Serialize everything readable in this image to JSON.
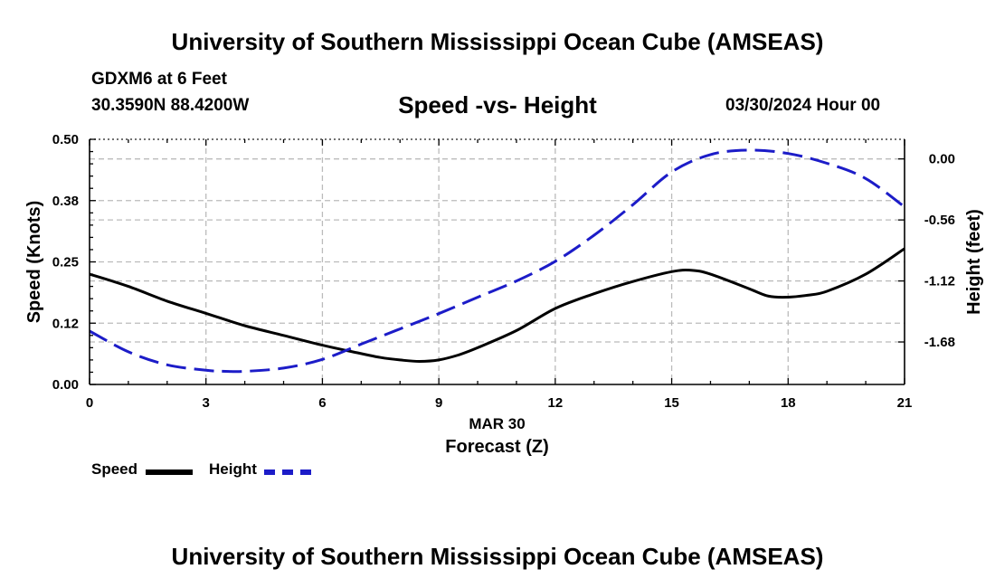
{
  "header": {
    "title": "University of Southern Mississippi Ocean Cube (AMSEAS)",
    "station": "GDXM6 at 6 Feet",
    "coords": "30.3590N  88.4200W",
    "subtitle": "Speed -vs- Height",
    "datetime": "03/30/2024 Hour 00"
  },
  "footer": {
    "title": "University of Southern Mississippi Ocean Cube (AMSEAS)"
  },
  "legend": {
    "speed": "Speed",
    "height": "Height"
  },
  "colors": {
    "speed": "#000000",
    "height": "#1c1cc8",
    "grid": "#bbbbbb"
  },
  "chart_data": {
    "type": "line",
    "title": "Speed -vs- Height",
    "xlabel": "Forecast (Z)",
    "xlabel_date": "MAR 30",
    "ylabel_left": "Speed (Knots)",
    "ylabel_right": "Height (feet)",
    "xlim": [
      0,
      21
    ],
    "ylim_left": [
      0,
      0.5
    ],
    "ylim_right": [
      -2.07,
      0.18
    ],
    "x_ticks": [
      0,
      3,
      6,
      9,
      12,
      15,
      18,
      21
    ],
    "x_tick_labels": [
      "0",
      "3",
      "6",
      "9",
      "12",
      "15",
      "18",
      "21"
    ],
    "y_left_ticks": [
      0,
      0.125,
      0.25,
      0.375,
      0.5
    ],
    "y_left_tick_labels": [
      "0.00",
      "0.12",
      "0.25",
      "0.38",
      "0.50"
    ],
    "y_right_ticks": [
      0,
      -0.56,
      -1.12,
      -1.68
    ],
    "y_right_tick_labels": [
      "0.00",
      "-0.56",
      "-1.12",
      "-1.68"
    ],
    "grid": true,
    "legend_position": "bottom-left",
    "series": [
      {
        "name": "Speed",
        "axis": "left",
        "style": "solid",
        "x": [
          0,
          1,
          2,
          3,
          4,
          5,
          6,
          7,
          7.5,
          8,
          8.5,
          9,
          9.5,
          10,
          11,
          12,
          13,
          14,
          15,
          15.5,
          16,
          17,
          17.5,
          18,
          18.5,
          19,
          20,
          21
        ],
        "values": [
          0.225,
          0.2,
          0.17,
          0.145,
          0.12,
          0.1,
          0.08,
          0.063,
          0.055,
          0.05,
          0.047,
          0.05,
          0.06,
          0.075,
          0.11,
          0.155,
          0.185,
          0.21,
          0.23,
          0.233,
          0.225,
          0.195,
          0.18,
          0.178,
          0.182,
          0.19,
          0.225,
          0.277
        ]
      },
      {
        "name": "Height",
        "axis": "right",
        "style": "dashed",
        "x": [
          0,
          1,
          2,
          3,
          3.5,
          4,
          5,
          6,
          7,
          8,
          9,
          10,
          11,
          12,
          13,
          14,
          15,
          16,
          17,
          18,
          19,
          20,
          21
        ],
        "values": [
          -1.58,
          -1.77,
          -1.89,
          -1.94,
          -1.95,
          -1.95,
          -1.92,
          -1.84,
          -1.7,
          -1.56,
          -1.42,
          -1.27,
          -1.12,
          -0.94,
          -0.7,
          -0.42,
          -0.12,
          0.04,
          0.08,
          0.05,
          -0.04,
          -0.18,
          -0.44
        ]
      }
    ]
  }
}
